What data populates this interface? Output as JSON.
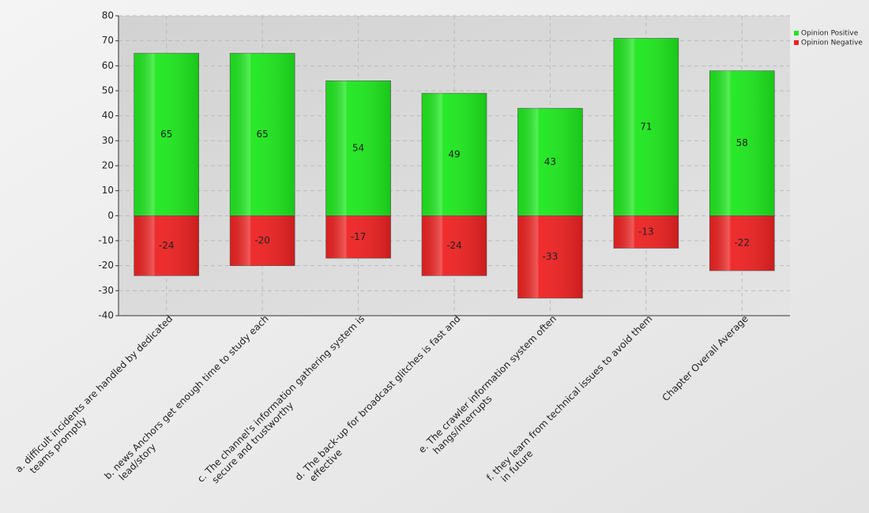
{
  "chart_data": {
    "type": "bar",
    "stacked": true,
    "categories": [
      [
        "a. difficult incidents are handled by dedicated",
        "teams promptly"
      ],
      [
        "b. news Anchors get enough time to study each",
        "lead/story"
      ],
      [
        "c. The channel's information gathering system is",
        "secure and trustworthy"
      ],
      [
        "d. The back-up for broadcast glitches is fast and",
        "effective"
      ],
      [
        "e. The crawler information system often",
        "hangs/interrupts"
      ],
      [
        "f. they learn from technical issues to avoid them",
        "in future"
      ],
      [
        "Chapter Overall Average"
      ]
    ],
    "series": [
      {
        "name": "Opinion Positive",
        "color": "#1ee81e",
        "values": [
          65,
          65,
          54,
          49,
          43,
          71,
          58
        ]
      },
      {
        "name": "Opinion Negative",
        "color": "#ee2222",
        "values": [
          -24,
          -20,
          -17,
          -24,
          -33,
          -13,
          -22
        ]
      }
    ],
    "ylim": [
      -40,
      80
    ],
    "yticks": [
      -40,
      -30,
      -20,
      -10,
      0,
      10,
      20,
      30,
      40,
      50,
      60,
      70,
      80
    ],
    "grid": true,
    "legend": "top-right"
  }
}
